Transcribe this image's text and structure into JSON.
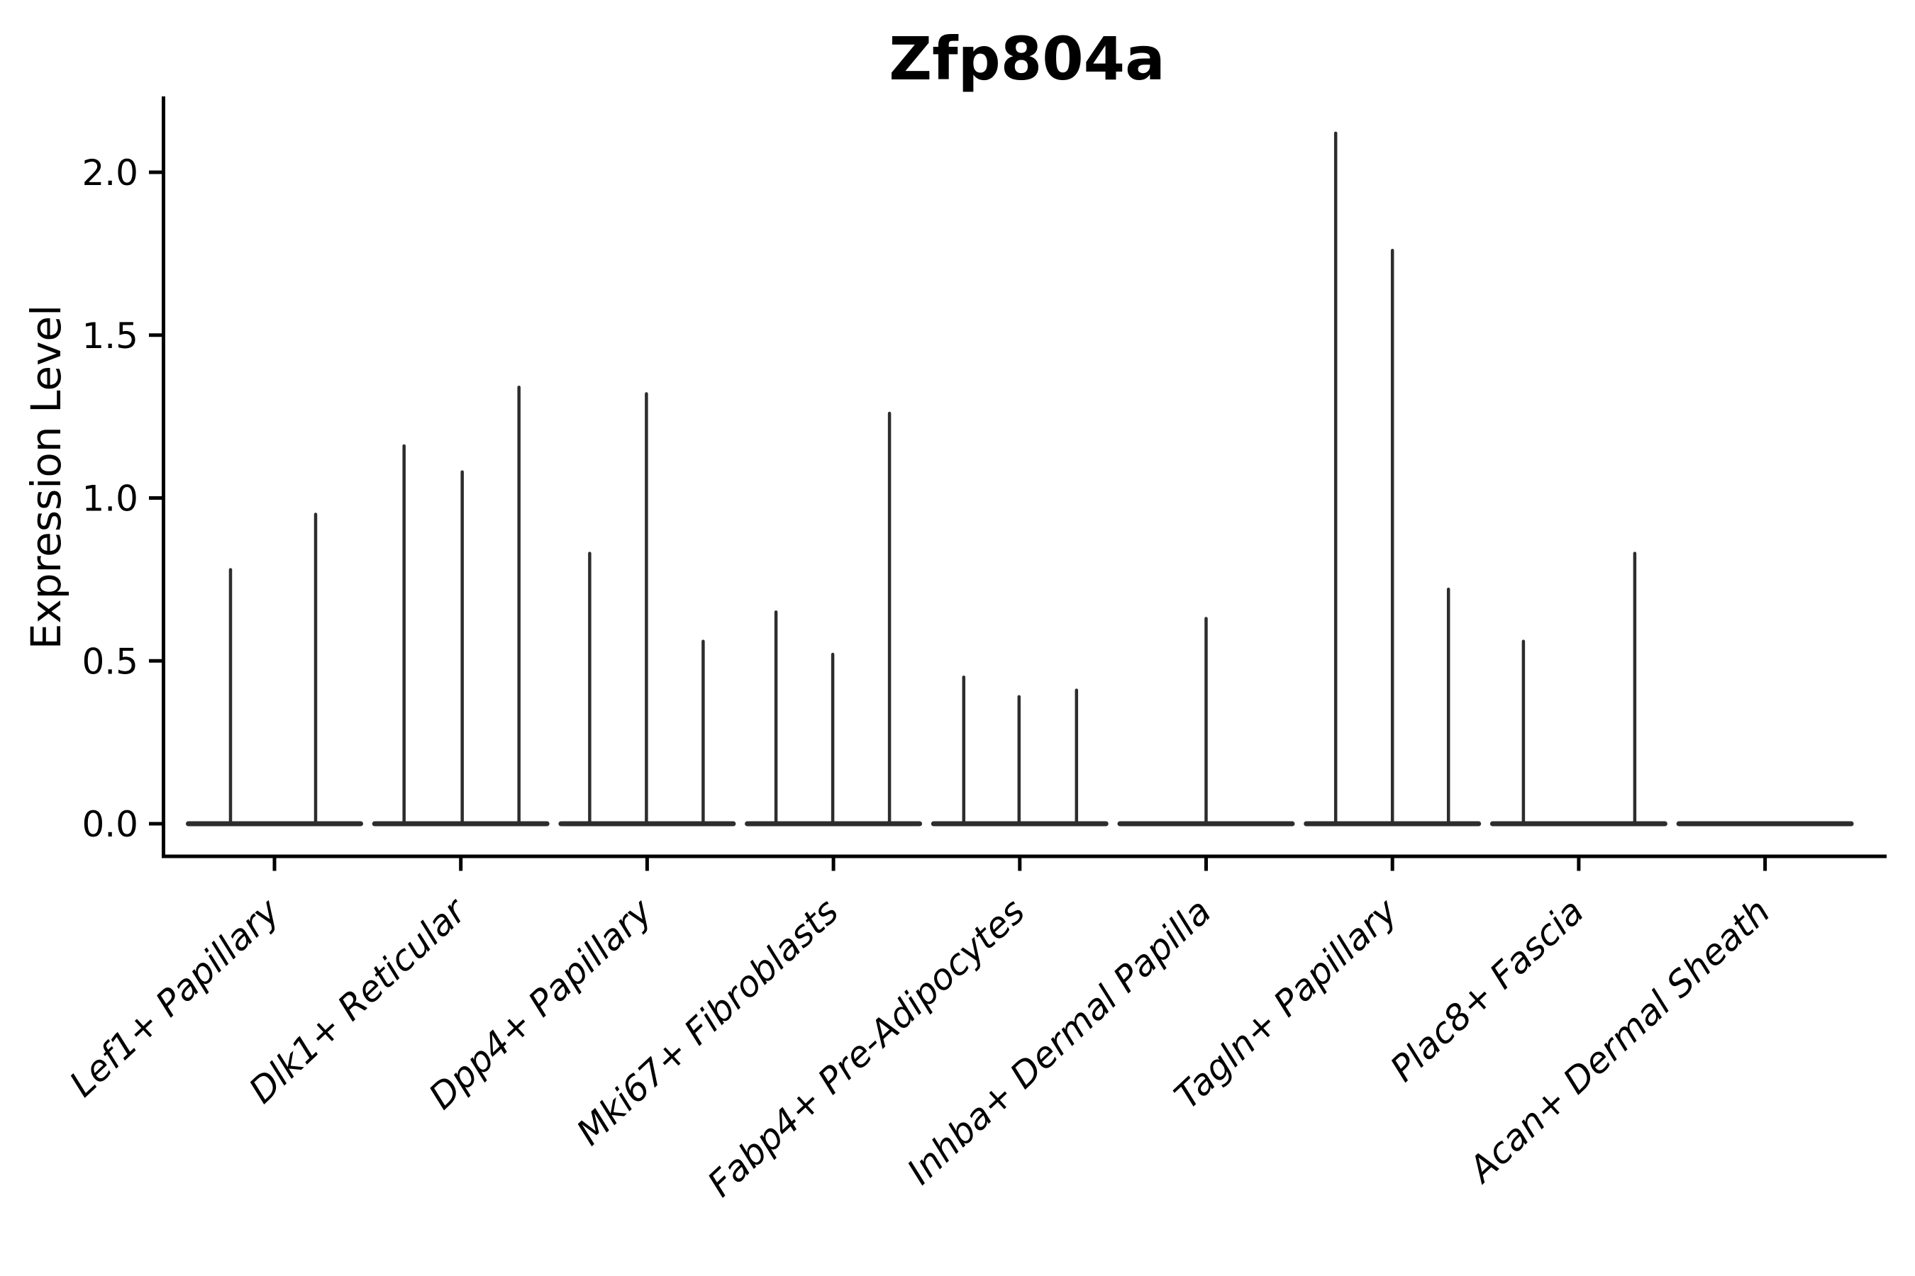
{
  "figure": {
    "title": "Zfp804a",
    "ylabel": "Expression Level"
  },
  "colors": {
    "violin": "#2d2d2d",
    "axis": "#000000",
    "text": "#000000",
    "background": "#ffffff"
  },
  "chart_data": {
    "type": "violin",
    "title": "Zfp804a",
    "xlabel": "",
    "ylabel": "Expression Level",
    "ylim": [
      -0.1,
      2.23
    ],
    "yticks": [
      0.0,
      0.5,
      1.0,
      1.5,
      2.0
    ],
    "ytick_labels": [
      "0.0",
      "0.5",
      "1.0",
      "1.5",
      "2.0"
    ],
    "grid": false,
    "legend": "none",
    "x_tick_rotation_deg": 43,
    "x_tick_style": "italic",
    "categories": [
      "Lef1+ Papillary",
      "Dlk1+ Reticular",
      "Dpp4+ Papillary",
      "Mki67+ Fibroblasts",
      "Fabp4+ Pre-Adipocytes",
      "Inhba+ Dermal Papilla",
      "Tagln+ Papillary",
      "Plac8+ Fascia",
      "Acan+ Dermal Sheath"
    ],
    "series": [
      {
        "category": "Lef1+ Papillary",
        "spikes": [
          {
            "dx": -62,
            "value": 0.78
          },
          {
            "dx": 58,
            "value": 0.95
          }
        ]
      },
      {
        "category": "Dlk1+ Reticular",
        "spikes": [
          {
            "dx": -80,
            "value": 1.16
          },
          {
            "dx": 2,
            "value": 1.08
          },
          {
            "dx": 82,
            "value": 1.34
          }
        ]
      },
      {
        "category": "Dpp4+ Papillary",
        "spikes": [
          {
            "dx": -81,
            "value": 0.83
          },
          {
            "dx": -1,
            "value": 1.32
          },
          {
            "dx": 79,
            "value": 0.56
          }
        ]
      },
      {
        "category": "Mki67+ Fibroblasts",
        "spikes": [
          {
            "dx": -81,
            "value": 0.65
          },
          {
            "dx": -1,
            "value": 0.52
          },
          {
            "dx": 79,
            "value": 1.26
          }
        ]
      },
      {
        "category": "Fabp4+ Pre-Adipocytes",
        "spikes": [
          {
            "dx": -79,
            "value": 0.45
          },
          {
            "dx": -1,
            "value": 0.39
          },
          {
            "dx": 80,
            "value": 0.41
          }
        ]
      },
      {
        "category": "Inhba+ Dermal Papilla",
        "spikes": [
          {
            "dx": 0,
            "value": 0.63
          }
        ]
      },
      {
        "category": "Tagln+ Papillary",
        "spikes": [
          {
            "dx": -80,
            "value": 2.12
          },
          {
            "dx": 0,
            "value": 1.76
          },
          {
            "dx": 79,
            "value": 0.72
          }
        ]
      },
      {
        "category": "Plac8+ Fascia",
        "spikes": [
          {
            "dx": -78,
            "value": 0.56
          },
          {
            "dx": 79,
            "value": 0.83
          }
        ]
      },
      {
        "category": "Acan+ Dermal Sheath",
        "spikes": []
      }
    ]
  }
}
